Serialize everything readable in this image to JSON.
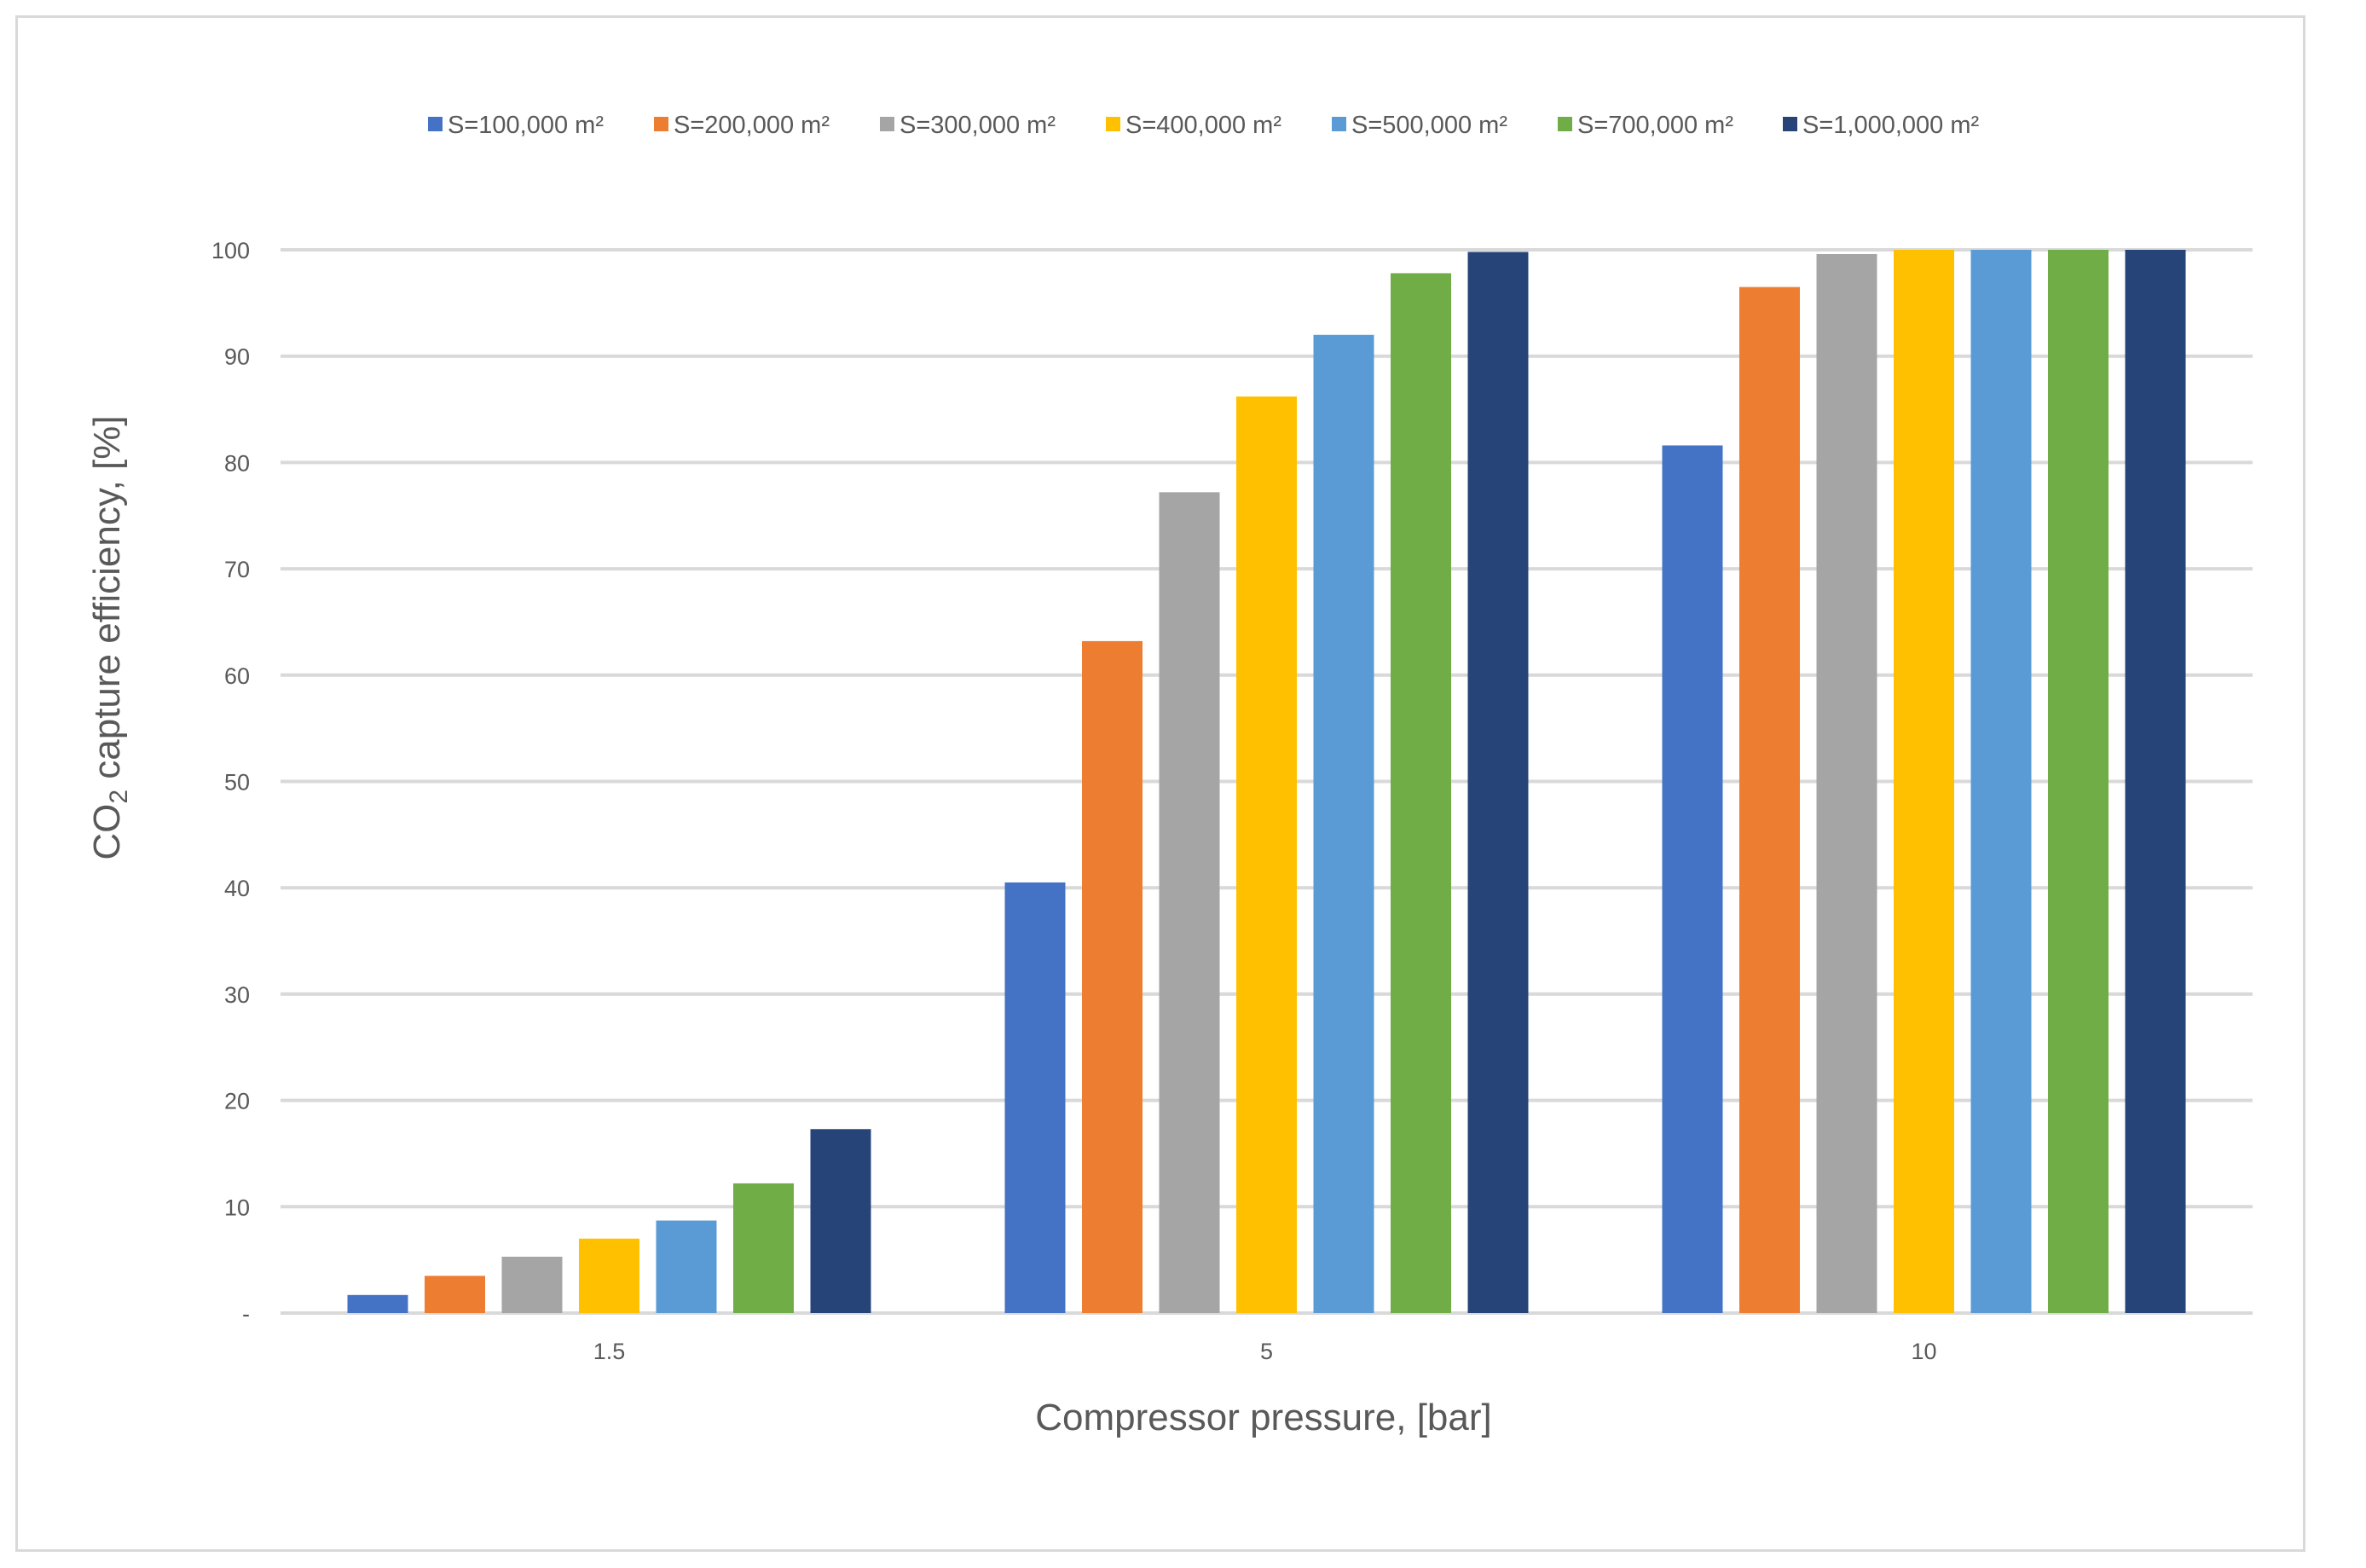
{
  "chart_data": {
    "type": "bar",
    "title": "",
    "xlabel": "Compressor pressure, [bar]",
    "ylabel_main": "CO",
    "ylabel_sub": "2",
    "ylabel_rest": " capture efficiency, [%]",
    "categories": [
      "1.5",
      "5",
      "10"
    ],
    "ylim": [
      0,
      100
    ],
    "yticks": [
      0,
      10,
      20,
      30,
      40,
      50,
      60,
      70,
      80,
      90,
      100
    ],
    "ytick_labels": [
      "-",
      "10",
      "20",
      "30",
      "40",
      "50",
      "60",
      "70",
      "80",
      "90",
      "100"
    ],
    "grid": true,
    "legend_position": "top",
    "series": [
      {
        "name": "S=100,000 m²",
        "color": "#4472c4",
        "values": [
          1.7,
          40.5,
          81.6
        ]
      },
      {
        "name": "S=200,000 m²",
        "color": "#ed7d31",
        "values": [
          3.5,
          63.2,
          96.5
        ]
      },
      {
        "name": "S=300,000 m²",
        "color": "#a5a5a5",
        "values": [
          5.3,
          77.2,
          99.6
        ]
      },
      {
        "name": "S=400,000 m²",
        "color": "#ffc000",
        "values": [
          7.0,
          86.2,
          100.0
        ]
      },
      {
        "name": "S=500,000 m²",
        "color": "#5b9bd5",
        "values": [
          8.7,
          92.0,
          100.0
        ]
      },
      {
        "name": "S=700,000 m²",
        "color": "#70ad47",
        "values": [
          12.2,
          97.8,
          100.0
        ]
      },
      {
        "name": "S=1,000,000 m²",
        "color": "#264478",
        "values": [
          17.3,
          99.8,
          100.0
        ]
      }
    ],
    "colors": {
      "gridline": "#d9d9d9",
      "text": "#595959",
      "frame": "#d9d9d9"
    }
  }
}
